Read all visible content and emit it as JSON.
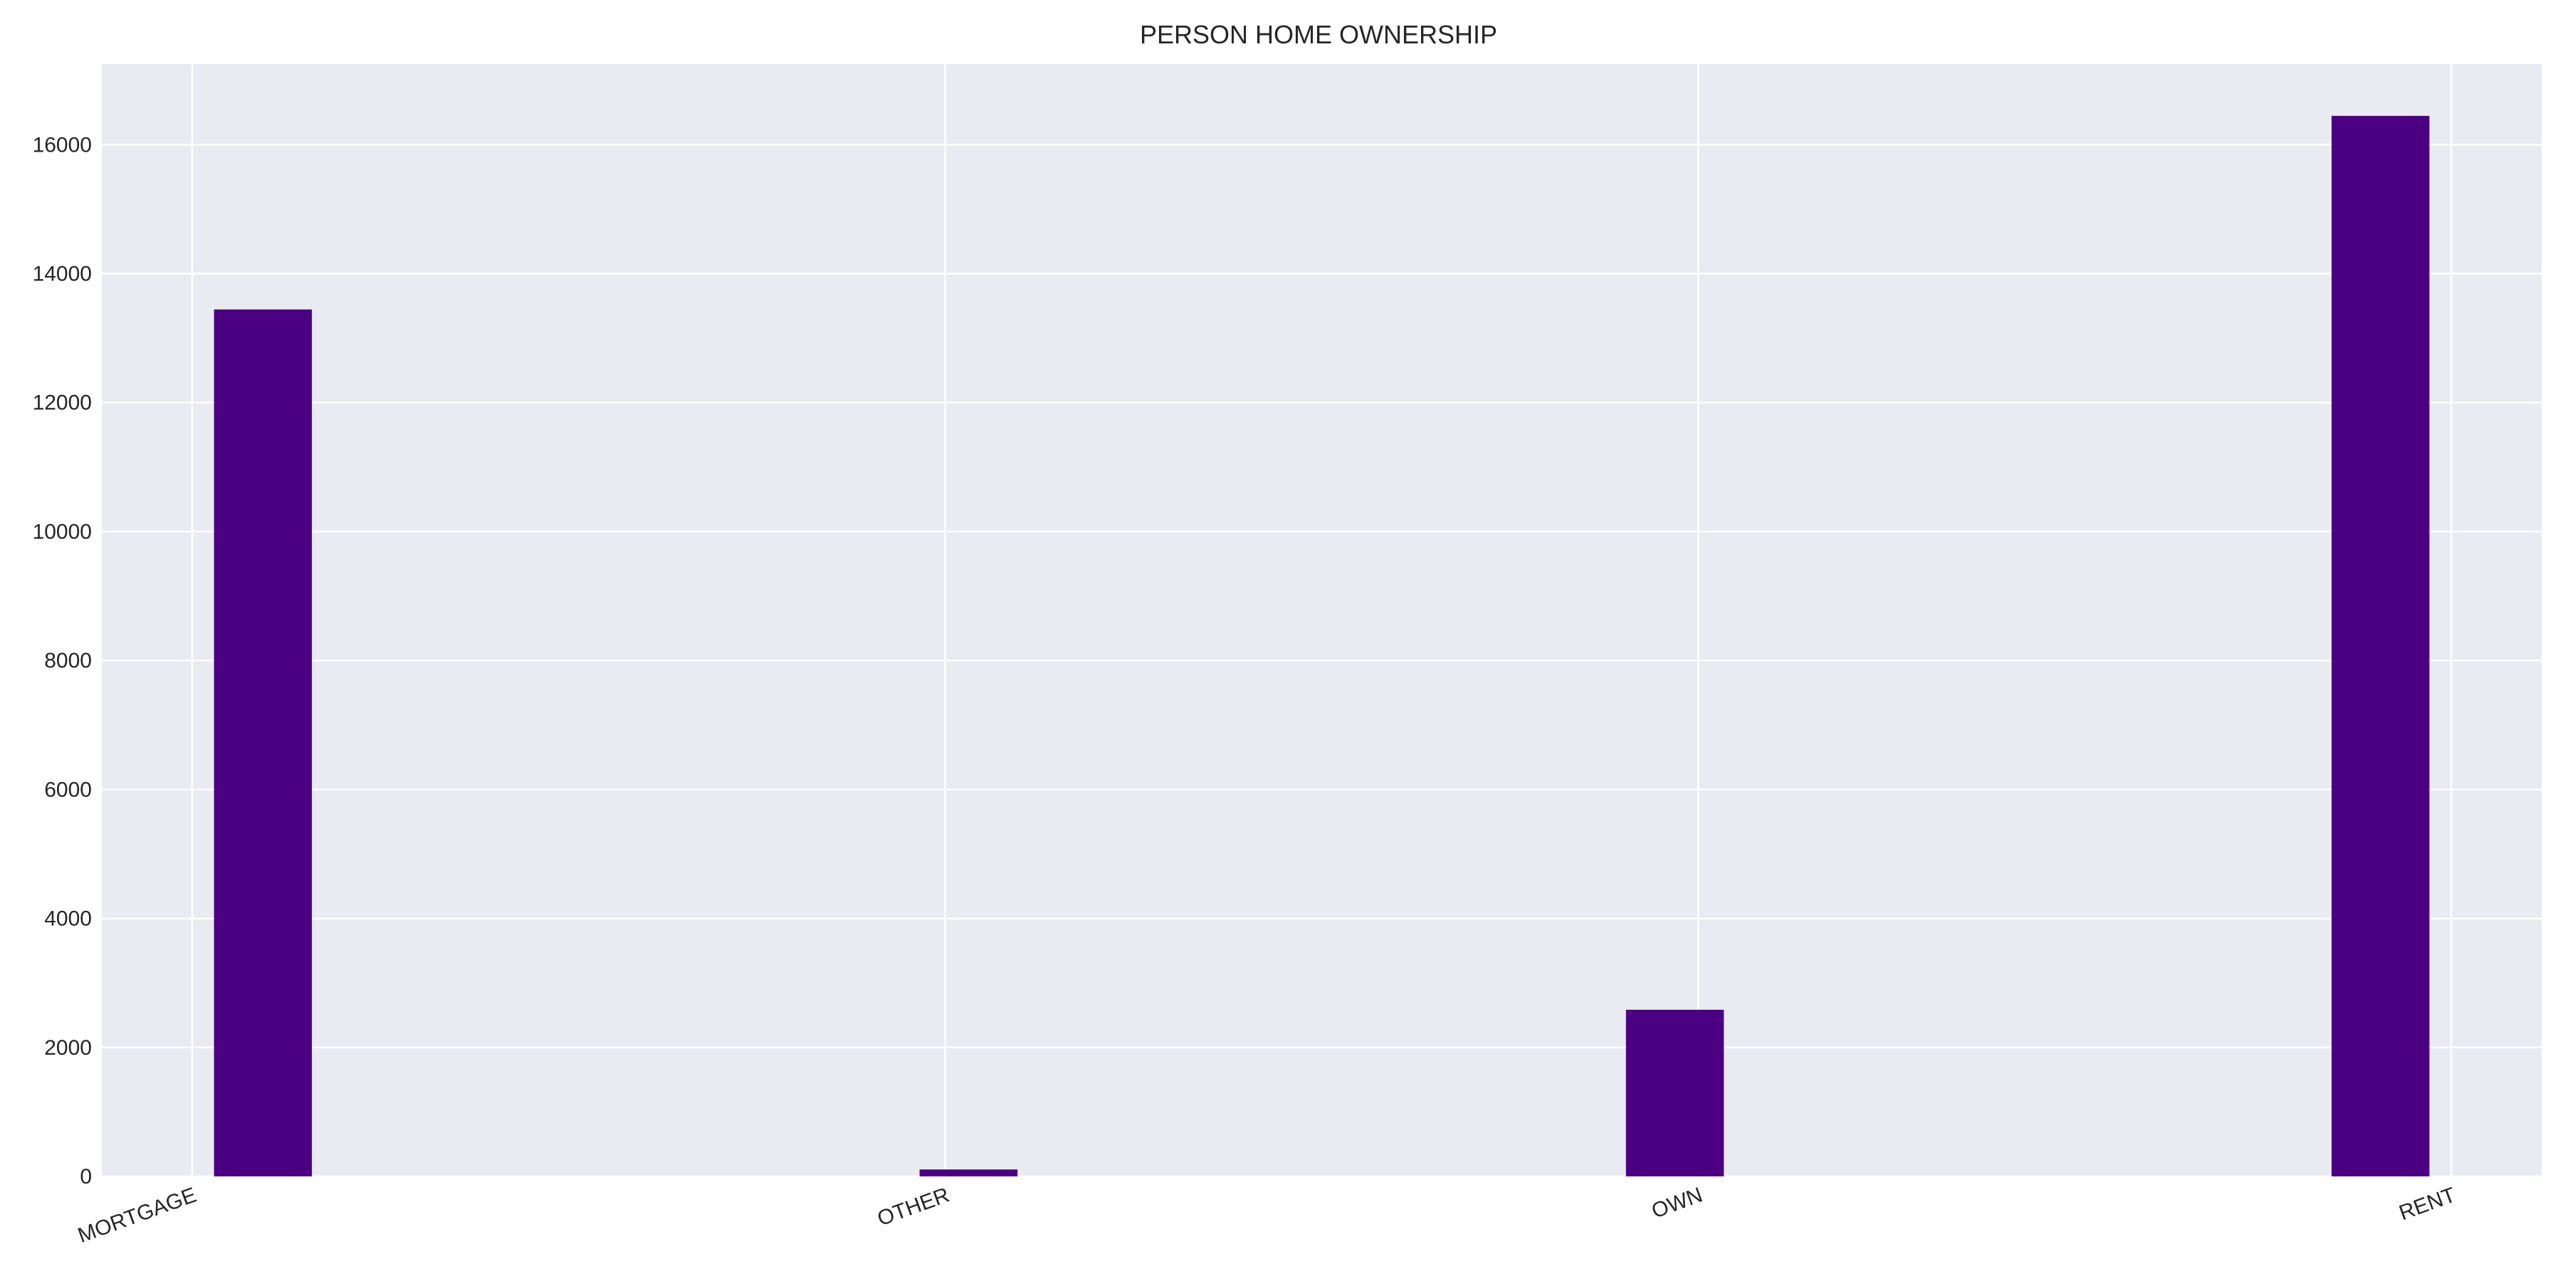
{
  "chart_data": {
    "type": "bar",
    "title": "PERSON HOME OWNERSHIP",
    "xlabel": "",
    "ylabel": "",
    "categories": [
      "MORTGAGE",
      "OTHER",
      "OWN",
      "RENT"
    ],
    "values": [
      13444,
      107,
      2584,
      16446
    ],
    "ylim": [
      0,
      17250
    ],
    "yticks": [
      0,
      2000,
      4000,
      6000,
      8000,
      10000,
      12000,
      14000,
      16000
    ],
    "x_tick_positions": [
      0.0,
      1.0,
      2.0,
      3.0
    ],
    "bar_centers": [
      0.094,
      1.031,
      1.969,
      2.906
    ],
    "xlim": [
      -0.12,
      3.12
    ],
    "grid": true,
    "legend": "none",
    "colors": {
      "bar": "#4b0082",
      "plot_background": "#eaeaf2",
      "grid": "#ffffff",
      "page_background": "#ffffff"
    }
  }
}
